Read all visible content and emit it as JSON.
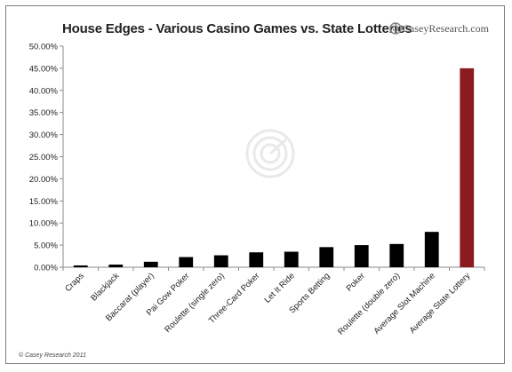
{
  "chart_data": {
    "type": "bar",
    "title": "House Edges - Various Casino Games vs. State Lotteries",
    "categories": [
      "Craps",
      "Blackjack",
      "Baccarat (player)",
      "Pai Gow Poker",
      "Roulette (single zero)",
      "Three-Card Poker",
      "Let It Ride",
      "Sports Betting",
      "Poker",
      "Roulette (double zero)",
      "Average Slot Machine",
      "Average State Lottery"
    ],
    "values": [
      0.41,
      0.6,
      1.24,
      2.3,
      2.7,
      3.37,
      3.51,
      4.55,
      5.0,
      5.26,
      8.0,
      45.0
    ],
    "ylim": [
      0,
      50
    ],
    "yticks": [
      0,
      5,
      10,
      15,
      20,
      25,
      30,
      35,
      40,
      45,
      50
    ],
    "ytick_labels": [
      "0.00%",
      "5.00%",
      "10.00%",
      "15.00%",
      "20.00%",
      "25.00%",
      "30.00%",
      "35.00%",
      "40.00%",
      "45.00%",
      "50.00%"
    ],
    "grid": false,
    "colors": {
      "default_bar": "#000000",
      "highlight_bar": "#8b1a1f",
      "axis": "#8a8a8a"
    },
    "highlight_index": 11
  },
  "branding": {
    "name": "CaseyResearch.com",
    "logo_icon": "casey-research-logo-icon"
  },
  "footer": {
    "copyright": "© Casey Research 2011"
  }
}
